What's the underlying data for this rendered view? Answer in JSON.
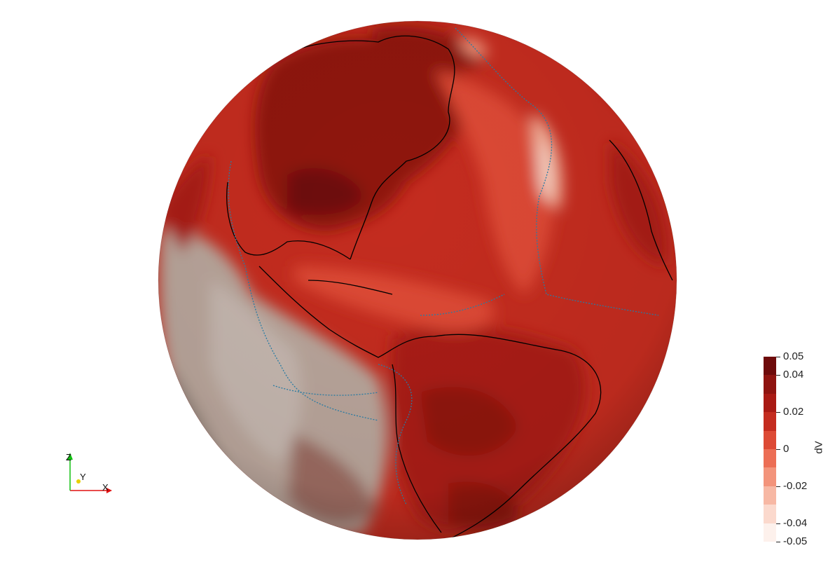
{
  "colorbar": {
    "title": "dV",
    "range": [
      -0.05,
      0.05
    ],
    "tick_labels": [
      "0.05",
      "0.04",
      "0.02",
      "0",
      "-0.02",
      "-0.04",
      "-0.05"
    ],
    "tick_values": [
      0.05,
      0.04,
      0.02,
      0,
      -0.02,
      -0.04,
      -0.05
    ],
    "bands": [
      "#6e0b0b",
      "#8f1410",
      "#a91a14",
      "#c42c1f",
      "#dd4a35",
      "#ec6e55",
      "#f3947b",
      "#f7b8a4",
      "#fbd9cd",
      "#fdf1ec"
    ]
  },
  "axes": {
    "x_label": "X",
    "y_label": "Y",
    "z_label": "Z",
    "x_color": "#e01010",
    "y_color": "#e8d000",
    "z_color": "#10c010"
  },
  "globe": {
    "ocean_base": "#c42c1f",
    "pale_region": "#a89a92"
  }
}
